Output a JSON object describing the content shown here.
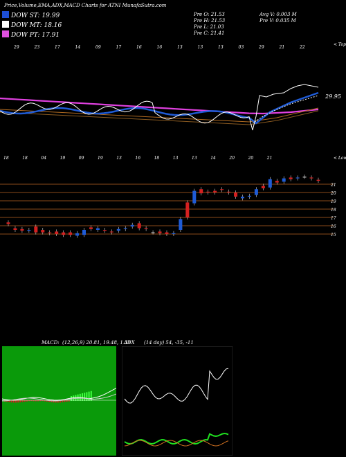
{
  "header": {
    "title": "Price,Volume,EMA,ADX,MACD Charts for ATNI MunafaSutra.com",
    "ohlc": {
      "open": "Pre  O: 21.53",
      "high": "Pre  H: 21.53",
      "low": "Pre  L: 21.03",
      "close": "Pre  C: 21.41"
    },
    "volume": {
      "avg": "Avg V: 0.003 M",
      "pre": "Pre  V: 0.035 M"
    }
  },
  "legend": [
    {
      "label": "DOW ST: 19.99",
      "color": "#1d4fd6"
    },
    {
      "label": "DOW MT: 18.16",
      "color": "#ffffff"
    },
    {
      "label": "DOW PT: 17.91",
      "color": "#e050e0"
    }
  ],
  "colors": {
    "up": "#1f5bd6",
    "down": "#d42020",
    "ema_long": "#e040e0",
    "ema_short": "#1f5bd6",
    "price_line": "#ffffff",
    "grid": "#8a4a1a"
  },
  "ema_panel": {
    "top_axis_label": "< Tops",
    "bottom_axis_label": "< Lows",
    "top_dates": [
      "29",
      "23",
      "17",
      "14",
      "09",
      "17",
      "16",
      "16",
      "13",
      "13",
      "13",
      "03",
      "29",
      "21",
      "22"
    ],
    "bottom_dates": [
      "18",
      "18",
      "04",
      "19",
      "09",
      "19",
      "13",
      "16",
      "18",
      "13",
      "13",
      "14",
      "20",
      "20",
      "21"
    ],
    "price_tag": "29.95"
  },
  "candle_panel": {
    "levels": [
      "21",
      "20",
      "19",
      "18",
      "17",
      "16",
      "15"
    ]
  },
  "macd": {
    "label": "MACD:",
    "values": "(12,26,9) 20.81, 19.48, 1.33"
  },
  "adx": {
    "label": "ADX",
    "values": "(14 day) 54, -35, -11"
  },
  "chart_data": {
    "type": "candlestick",
    "candles": [
      {
        "o": 16.4,
        "c": 16.2
      },
      {
        "o": 15.7,
        "c": 15.5
      },
      {
        "o": 15.6,
        "c": 15.4
      },
      {
        "o": 15.4,
        "c": 15.5
      },
      {
        "o": 15.9,
        "c": 15.2
      },
      {
        "o": 15.5,
        "c": 15.2
      },
      {
        "o": 15.2,
        "c": 15.1
      },
      {
        "o": 15.3,
        "c": 15.0
      },
      {
        "o": 15.2,
        "c": 14.9
      },
      {
        "o": 15.2,
        "c": 14.9
      },
      {
        "o": 14.8,
        "c": 15.1
      },
      {
        "o": 14.9,
        "c": 15.5
      },
      {
        "o": 15.8,
        "c": 15.6
      },
      {
        "o": 15.5,
        "c": 15.7
      },
      {
        "o": 15.5,
        "c": 15.4
      },
      {
        "o": 15.3,
        "c": 15.2
      },
      {
        "o": 15.4,
        "c": 15.6
      },
      {
        "o": 15.6,
        "c": 15.7
      },
      {
        "o": 15.9,
        "c": 16.1
      },
      {
        "o": 16.3,
        "c": 15.7
      },
      {
        "o": 15.7,
        "c": 15.6
      },
      {
        "o": 15.2,
        "c": 15.2
      },
      {
        "o": 15.3,
        "c": 15.1
      },
      {
        "o": 15.2,
        "c": 15.0
      },
      {
        "o": 15.0,
        "c": 15.1
      },
      {
        "o": 15.5,
        "c": 16.8
      },
      {
        "o": 18.8,
        "c": 17.0
      },
      {
        "o": 18.7,
        "c": 20.2
      },
      {
        "o": 20.4,
        "c": 19.9
      },
      {
        "o": 20.1,
        "c": 20.0
      },
      {
        "o": 20.2,
        "c": 20.0
      },
      {
        "o": 20.4,
        "c": 20.3
      },
      {
        "o": 20.1,
        "c": 20.0
      },
      {
        "o": 20.0,
        "c": 19.5
      },
      {
        "o": 19.3,
        "c": 19.5
      },
      {
        "o": 19.5,
        "c": 19.6
      },
      {
        "o": 19.7,
        "c": 20.4
      },
      {
        "o": 20.8,
        "c": 20.5
      },
      {
        "o": 20.6,
        "c": 21.6
      },
      {
        "o": 21.4,
        "c": 21.2
      },
      {
        "o": 21.3,
        "c": 21.7
      },
      {
        "o": 21.8,
        "c": 21.6
      },
      {
        "o": 21.7,
        "c": 21.8
      },
      {
        "o": 21.9,
        "c": 21.9
      },
      {
        "o": 21.8,
        "c": 21.7
      },
      {
        "o": 21.53,
        "c": 21.41
      }
    ],
    "ylim": [
      14.5,
      22.5
    ]
  }
}
